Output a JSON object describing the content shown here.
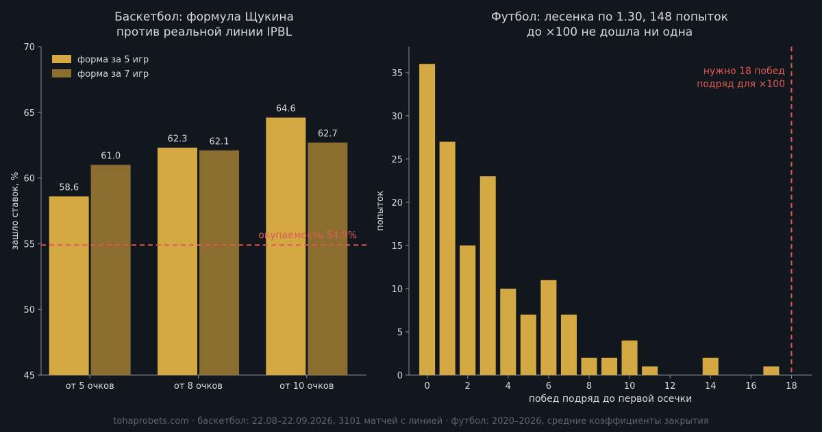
{
  "colors": {
    "background": "#12161d",
    "bar_primary": "#d4a843",
    "bar_secondary": "#8b6d2f",
    "reference_line": "#e05a57",
    "axis": "#8a8f98",
    "text": "#d8d8d8",
    "footer": "#5b636e"
  },
  "footer": "tohaprobets.com · баскетбол: 22.08–22.09.2026, 3101 матчей с линией · футбол: 2020–2026, средние коэффициенты закрытия",
  "chart_data": [
    {
      "type": "bar",
      "title": [
        "Баскетбол: формула Щукина",
        "против реальной линии IPBL"
      ],
      "xlabel": "",
      "ylabel": "зашло ставок, %",
      "ylim": [
        45,
        70
      ],
      "yticks": [
        45,
        50,
        55,
        60,
        65,
        70
      ],
      "categories": [
        "от 5 очков",
        "от 8 очков",
        "от 10 очков"
      ],
      "series": [
        {
          "name": "форма за 5 игр",
          "values": [
            58.6,
            62.3,
            64.6
          ],
          "color": "#d4a843"
        },
        {
          "name": "форма за 7 игр",
          "values": [
            61.0,
            62.1,
            62.7
          ],
          "color": "#8b6d2f"
        }
      ],
      "data_labels": [
        [
          "58.6",
          "62.3",
          "64.6"
        ],
        [
          "61.0",
          "62.1",
          "62.7"
        ]
      ],
      "reference_line": {
        "value": 54.9,
        "label": "окупаемость 54.9%",
        "style": "dashed"
      },
      "legend": "top-left",
      "grid": false
    },
    {
      "type": "bar",
      "title": [
        "Футбол: лесенка по 1.30, 148 попыток",
        "до ×100 не дошла ни одна"
      ],
      "xlabel": "побед подряд до первой осечки",
      "ylabel": "попыток",
      "xlim": [
        -0.9,
        19
      ],
      "ylim": [
        0,
        38
      ],
      "xticks": [
        0,
        2,
        4,
        6,
        8,
        10,
        12,
        14,
        16,
        18
      ],
      "yticks": [
        0,
        5,
        10,
        15,
        20,
        25,
        30,
        35
      ],
      "x": [
        0,
        1,
        2,
        3,
        4,
        5,
        6,
        7,
        8,
        9,
        10,
        11,
        12,
        13,
        14,
        15,
        16,
        17
      ],
      "values": [
        36,
        27,
        15,
        23,
        10,
        7,
        11,
        7,
        2,
        2,
        4,
        1,
        0,
        0,
        2,
        0,
        0,
        1
      ],
      "reference_line": {
        "x": 18,
        "label": [
          "нужно 18 побед",
          "подряд для ×100"
        ],
        "style": "dashed"
      },
      "legend": "none",
      "grid": false
    }
  ]
}
